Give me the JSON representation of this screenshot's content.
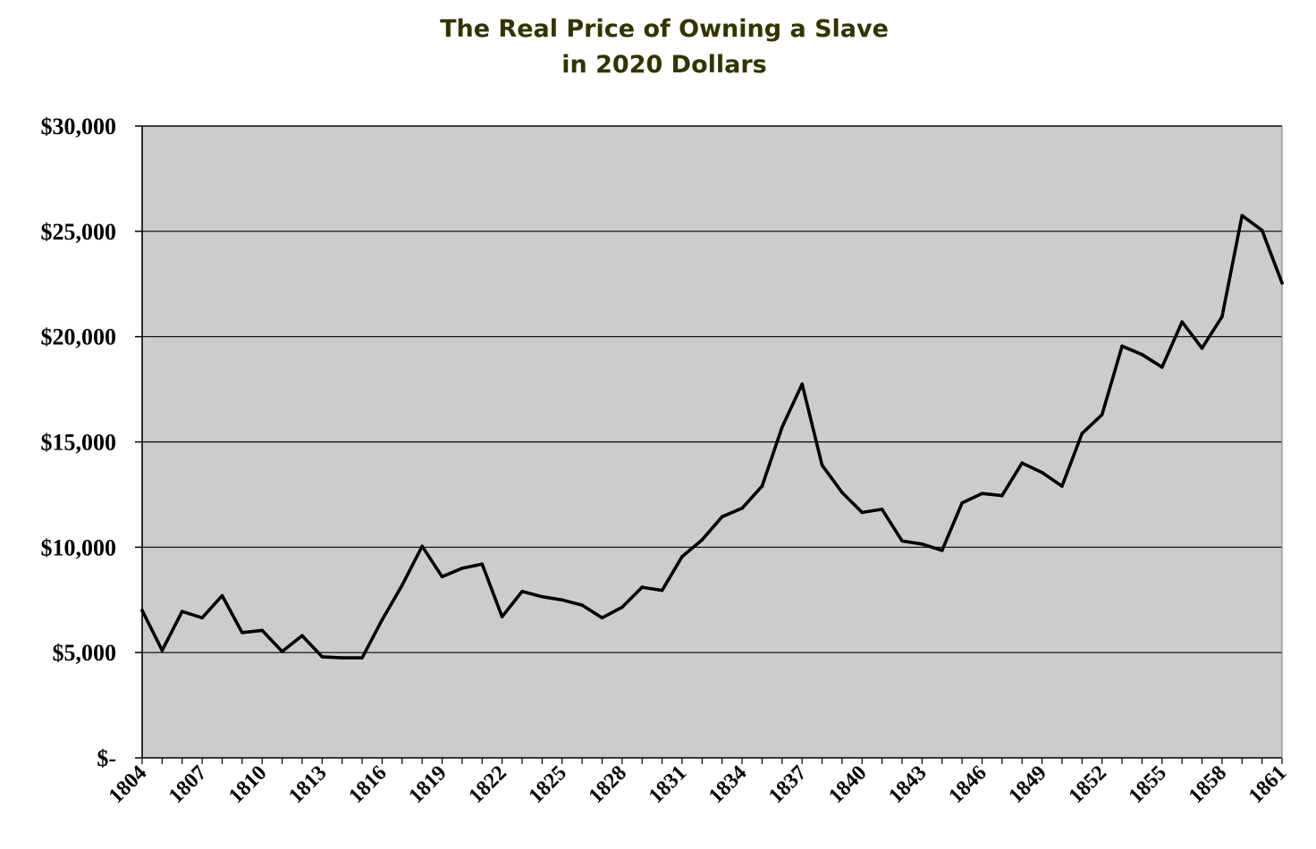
{
  "chart_data": {
    "type": "line",
    "title": "The Real Price of Owning a Slave",
    "subtitle": "in 2020 Dollars",
    "xlabel": "",
    "ylabel": "",
    "ylim": [
      0,
      30000
    ],
    "xlim": [
      1804,
      1861
    ],
    "grid": true,
    "legend": "none",
    "y_tick_values": [
      0,
      5000,
      10000,
      15000,
      20000,
      25000,
      30000
    ],
    "y_tick_labels": [
      "$-",
      "$5,000",
      "$10,000",
      "$15,000",
      "$20,000",
      "$25,000",
      "$30,000"
    ],
    "x_tick_labels": [
      "1804",
      "1807",
      "1810",
      "1813",
      "1816",
      "1819",
      "1822",
      "1825",
      "1828",
      "1831",
      "1834",
      "1837",
      "1840",
      "1843",
      "1846",
      "1849",
      "1852",
      "1855",
      "1858",
      "1861"
    ],
    "x": [
      1804,
      1805,
      1806,
      1807,
      1808,
      1809,
      1810,
      1811,
      1812,
      1813,
      1814,
      1815,
      1816,
      1817,
      1818,
      1819,
      1820,
      1821,
      1822,
      1823,
      1824,
      1825,
      1826,
      1827,
      1828,
      1829,
      1830,
      1831,
      1832,
      1833,
      1834,
      1835,
      1836,
      1837,
      1838,
      1839,
      1840,
      1841,
      1842,
      1843,
      1844,
      1845,
      1846,
      1847,
      1848,
      1849,
      1850,
      1851,
      1852,
      1853,
      1854,
      1855,
      1856,
      1857,
      1858,
      1859,
      1860,
      1861
    ],
    "series": [
      {
        "values": [
          7000,
          5100,
          6950,
          6650,
          7700,
          5950,
          6050,
          5050,
          5800,
          4800,
          4750,
          4750,
          6550,
          8200,
          10050,
          8600,
          9000,
          9200,
          6700,
          7900,
          7650,
          7500,
          7250,
          6650,
          7150,
          8100,
          7950,
          9550,
          10350,
          11450,
          11850,
          12900,
          15700,
          17750,
          13900,
          12600,
          11650,
          11800,
          10300,
          10150,
          9850,
          12100,
          12550,
          12450,
          14000,
          13550,
          12900,
          15400,
          16300,
          19550,
          19150,
          18550,
          20700,
          19450,
          20950,
          25750,
          25050,
          22550
        ]
      }
    ],
    "colors": {
      "plot_background": "#cccccc",
      "line": "#000000",
      "grid": "#000000",
      "title": "#333300"
    }
  }
}
